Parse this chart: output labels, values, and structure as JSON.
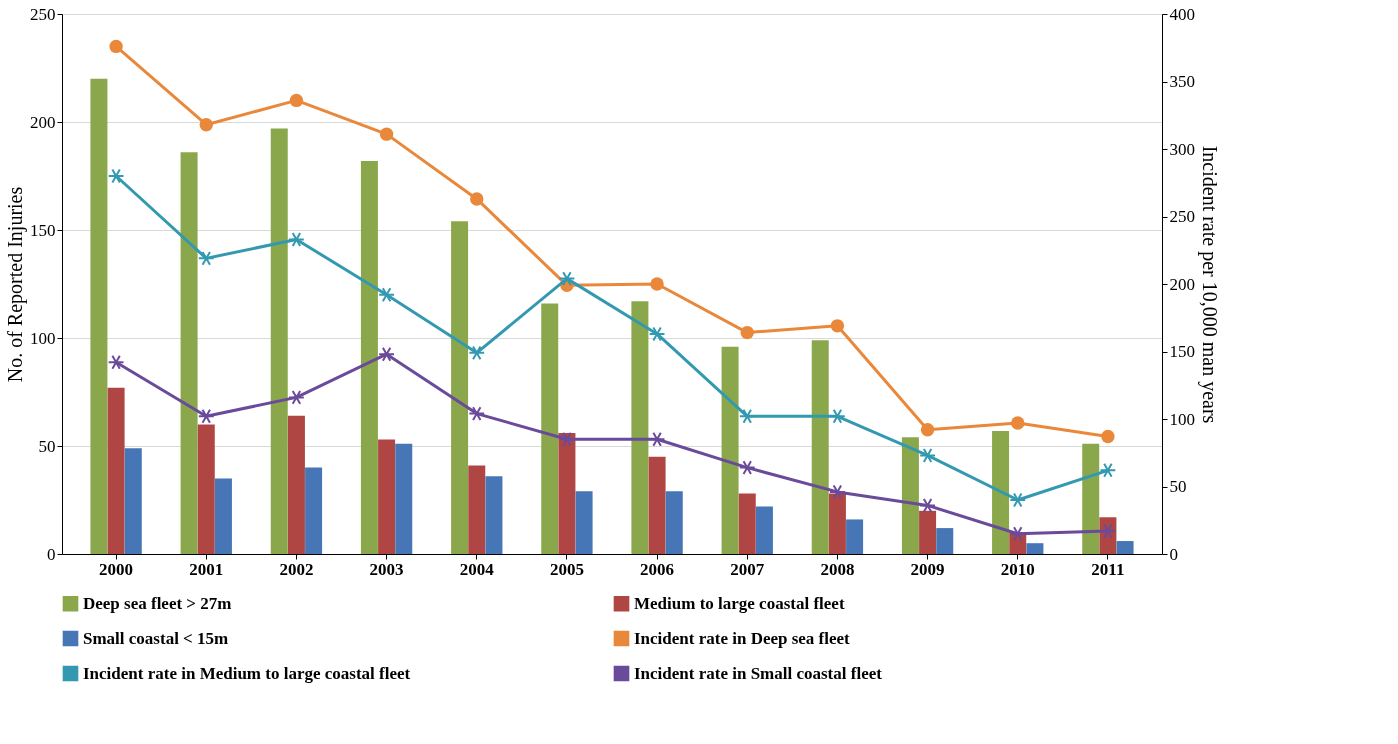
{
  "chart_data": {
    "type": "bar",
    "ylabel": "No. of Reported Injuries",
    "y2label": "Incident rate per 10,000 man years",
    "categories": [
      "2000",
      "2001",
      "2002",
      "2003",
      "2004",
      "2005",
      "2006",
      "2007",
      "2008",
      "2009",
      "2010",
      "2011"
    ],
    "series": [
      {
        "name": "Deep sea fleet > 27m",
        "color": "#8aa84b",
        "values": [
          220,
          186,
          197,
          182,
          154,
          116,
          117,
          96,
          99,
          54,
          57,
          51
        ]
      },
      {
        "name": "Medium to large coastal fleet",
        "color": "#b04644",
        "values": [
          77,
          60,
          64,
          53,
          41,
          56,
          45,
          28,
          28,
          20,
          10,
          17
        ]
      },
      {
        "name": "Small coastal < 15m",
        "color": "#4676b6",
        "values": [
          49,
          35,
          40,
          51,
          36,
          29,
          29,
          22,
          16,
          12,
          5,
          6
        ]
      },
      {
        "name": "Incident rate in Deep sea fleet",
        "color": "#e9883a",
        "type": "line",
        "axis": "y2",
        "marker": "circle",
        "values": [
          376,
          318,
          336,
          311,
          263,
          199,
          200,
          164,
          169,
          92,
          97,
          87
        ]
      },
      {
        "name": "Incident rate in Medium to large coastal fleet",
        "color": "#3399b0",
        "type": "line",
        "axis": "y2",
        "marker": "cross",
        "values": [
          280,
          219,
          233,
          192,
          149,
          204,
          163,
          102,
          102,
          73,
          40,
          62
        ]
      },
      {
        "name": "Incident rate in Small coastal fleet",
        "color": "#6a4a9a",
        "type": "line",
        "axis": "y2",
        "marker": "cross",
        "values": [
          142,
          102,
          116,
          148,
          104,
          85,
          85,
          64,
          46,
          36,
          15,
          17
        ]
      }
    ],
    "ylim": [
      0,
      250
    ],
    "yticks": [
      0,
      50,
      100,
      150,
      200,
      250
    ],
    "y2lim": [
      0,
      400
    ],
    "y2ticks": [
      0,
      50,
      100,
      150,
      200,
      250,
      300,
      350,
      400
    ],
    "grid": "y",
    "legend": "bottom"
  }
}
